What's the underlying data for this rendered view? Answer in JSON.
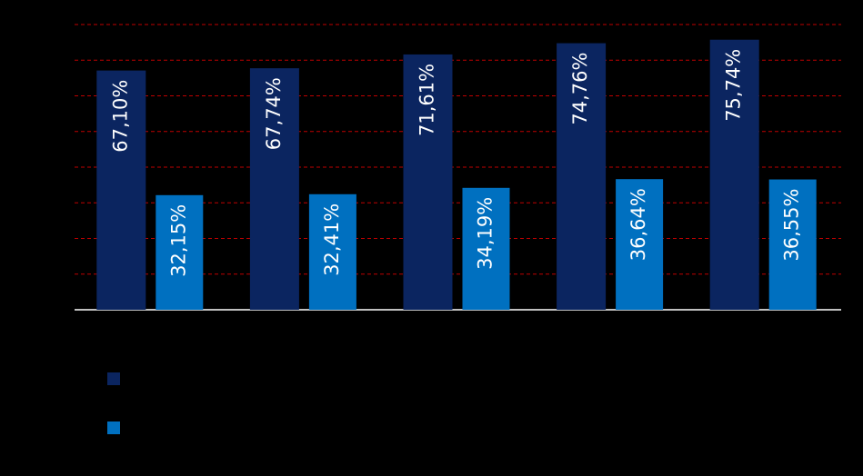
{
  "chart_data": {
    "type": "bar",
    "categories": [
      null,
      null,
      null,
      null,
      null
    ],
    "series": [
      {
        "color": "#0b2560",
        "values": [
          67.1,
          67.74,
          71.61,
          74.76,
          75.74
        ],
        "value_labels": [
          "67,10%",
          "67,74%",
          "71,61%",
          "74,76%",
          "75,74%"
        ]
      },
      {
        "color": "#0070c0",
        "values": [
          32.15,
          32.41,
          34.19,
          36.64,
          36.55
        ],
        "value_labels": [
          "32,15%",
          "32,41%",
          "34,19%",
          "36,64%",
          "36,55%"
        ]
      }
    ],
    "ylim": [
      0,
      80
    ],
    "yticks": [
      0,
      10,
      20,
      30,
      40,
      50,
      60,
      70,
      80
    ],
    "grid": true,
    "grid_color": "#c00000"
  }
}
